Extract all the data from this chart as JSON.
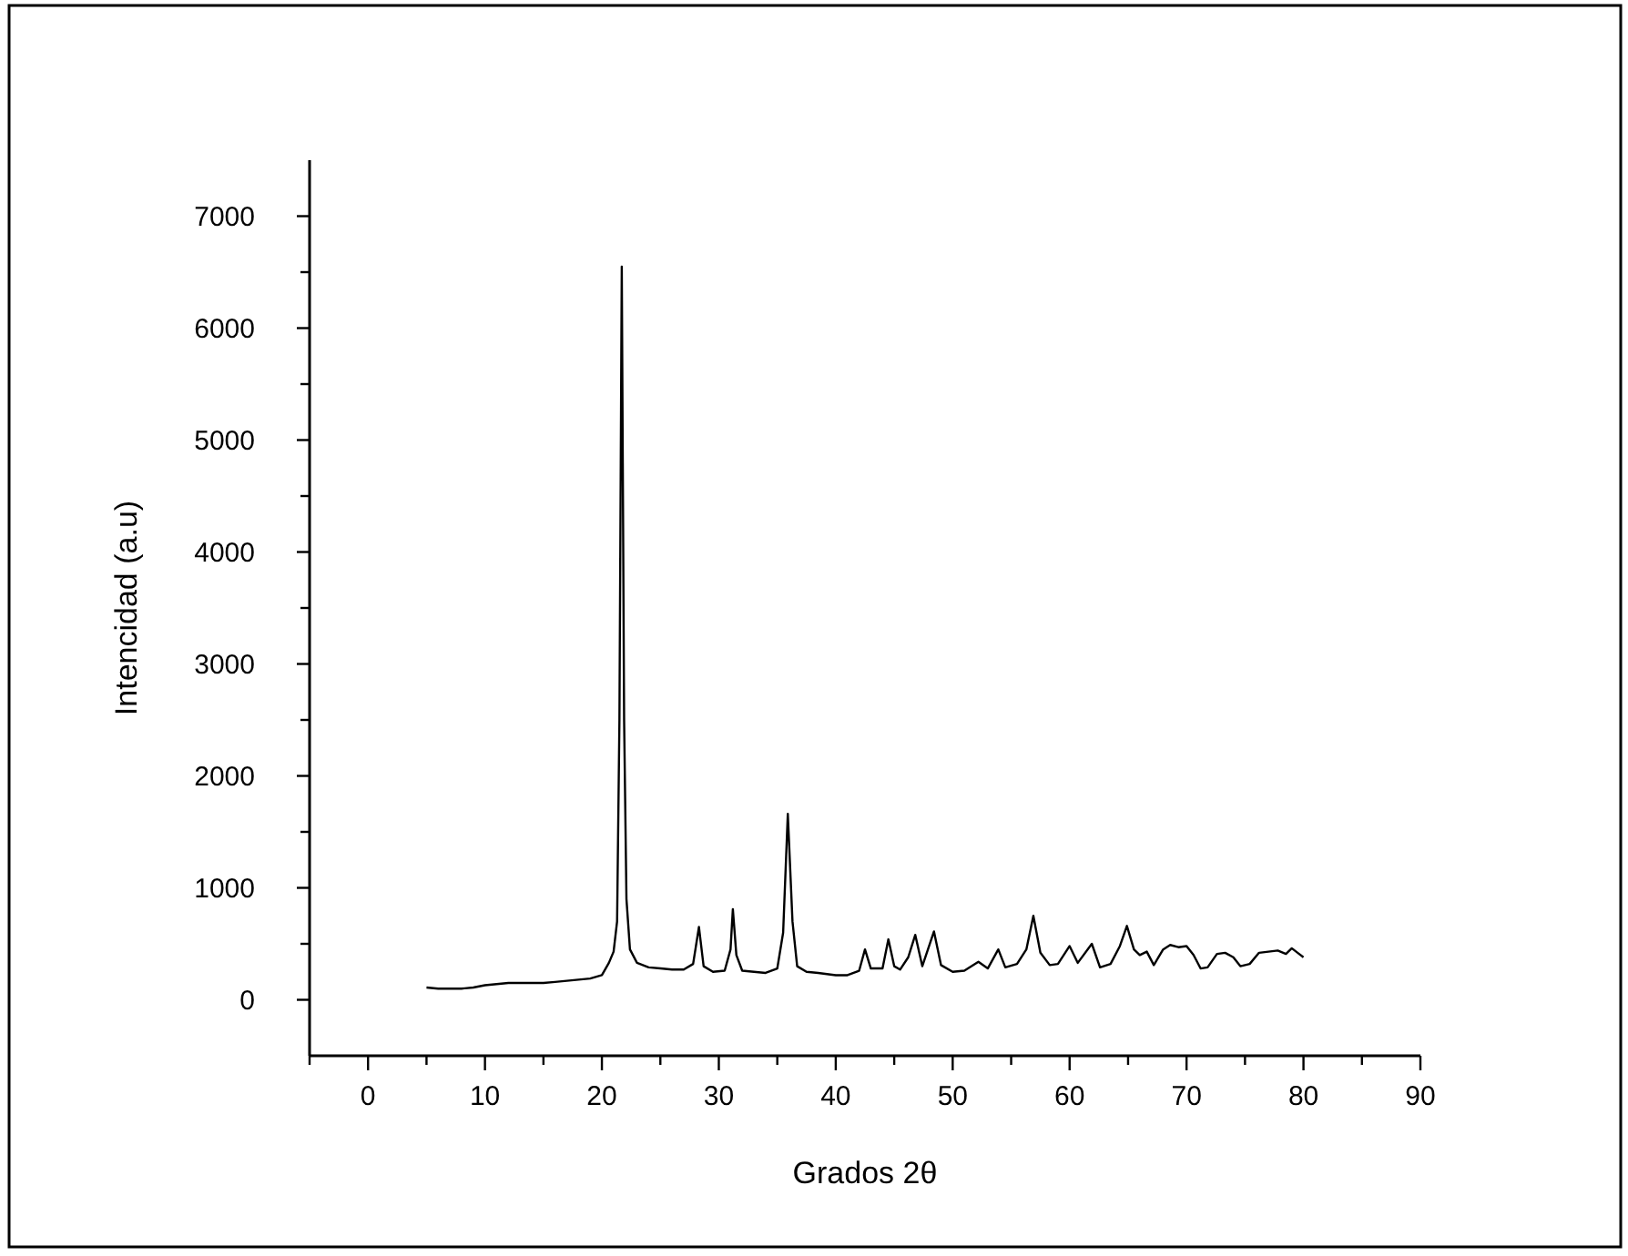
{
  "chart_data": {
    "type": "line",
    "xlabel": "Grados 2θ",
    "ylabel": "Intencidad (a.u)",
    "xlim": [
      -5,
      90
    ],
    "ylim": [
      -500,
      7500
    ],
    "xticks": [
      {
        "value": -5,
        "label": null
      },
      0,
      {
        "value": 5,
        "label": null
      },
      10,
      {
        "value": 15,
        "label": null
      },
      20,
      {
        "value": 25,
        "label": null
      },
      30,
      {
        "value": 35,
        "label": null
      },
      40,
      {
        "value": 45,
        "label": null
      },
      50,
      {
        "value": 55,
        "label": null
      },
      60,
      {
        "value": 65,
        "label": null
      },
      70,
      {
        "value": 75,
        "label": null
      },
      80,
      {
        "value": 85,
        "label": null
      },
      90
    ],
    "yticks": [
      0,
      {
        "value": 500,
        "label": null
      },
      1000,
      {
        "value": 1500,
        "label": null
      },
      2000,
      {
        "value": 2500,
        "label": null
      },
      3000,
      {
        "value": 3500,
        "label": null
      },
      4000,
      {
        "value": 4500,
        "label": null
      },
      5000,
      {
        "value": 5500,
        "label": null
      },
      6000,
      {
        "value": 6500,
        "label": null
      },
      7000
    ],
    "grid": false,
    "marker": "none",
    "line_style": "solid",
    "series": [
      {
        "color": "#000000",
        "x": [
          5,
          6,
          7,
          8,
          9,
          10,
          11,
          12,
          13,
          14,
          15,
          16,
          17,
          18,
          19,
          20,
          20.6,
          21,
          21.3,
          21.5,
          21.7,
          21.9,
          22.1,
          22.4,
          23,
          24,
          25,
          26,
          27,
          27.8,
          28.3,
          28.7,
          29.5,
          30.5,
          31,
          31.2,
          31.5,
          32,
          33,
          34,
          35,
          35.5,
          35.9,
          36.3,
          36.7,
          37.5,
          38.5,
          40,
          41,
          42,
          42.5,
          43,
          44,
          44.5,
          45,
          45.5,
          46.2,
          46.8,
          47.4,
          48.4,
          49,
          50,
          51,
          52.2,
          53,
          53.9,
          54.5,
          55.5,
          56.3,
          56.9,
          57.5,
          58.3,
          59,
          60,
          60.7,
          61.9,
          62.6,
          63.5,
          64.3,
          64.9,
          65.5,
          66,
          66.6,
          67.2,
          68,
          68.6,
          69.3,
          70,
          70.6,
          71.2,
          71.8,
          72.6,
          73.3,
          74,
          74.6,
          75.4,
          76.2,
          77,
          77.8,
          78.5,
          79,
          79.5,
          80
        ],
        "values": [
          110,
          100,
          100,
          100,
          110,
          130,
          140,
          150,
          150,
          150,
          150,
          160,
          170,
          180,
          190,
          220,
          330,
          430,
          700,
          2500,
          6550,
          2500,
          900,
          450,
          330,
          290,
          280,
          270,
          270,
          320,
          650,
          300,
          250,
          260,
          450,
          810,
          400,
          260,
          250,
          240,
          280,
          600,
          1660,
          700,
          300,
          250,
          240,
          220,
          220,
          260,
          450,
          280,
          280,
          540,
          300,
          270,
          380,
          580,
          300,
          610,
          310,
          250,
          260,
          340,
          280,
          450,
          290,
          320,
          450,
          750,
          420,
          310,
          320,
          480,
          330,
          500,
          290,
          320,
          480,
          660,
          450,
          400,
          430,
          310,
          450,
          490,
          470,
          480,
          400,
          280,
          290,
          410,
          420,
          380,
          300,
          320,
          420,
          430,
          440,
          410,
          460,
          420,
          380
        ]
      }
    ]
  }
}
